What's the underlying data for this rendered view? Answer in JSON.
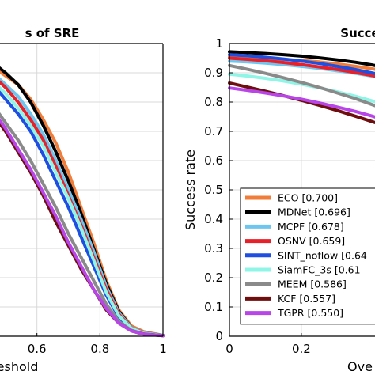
{
  "chart_data": [
    {
      "type": "line",
      "title": "s of SRE",
      "xlabel": "eshold",
      "ylabel": "",
      "xlim": [
        0.42,
        1.0
      ],
      "ylim": [
        0,
        1
      ],
      "xticks": [
        0.6,
        0.8,
        1
      ],
      "xtick_labels": [
        "0.6",
        "0.8",
        "1"
      ],
      "grid": true,
      "series": [
        {
          "color": "#f07d3a",
          "width": 4,
          "x": [
            0.42,
            0.46,
            0.5,
            0.54,
            0.58,
            0.62,
            0.66,
            0.7,
            0.74,
            0.78,
            0.82,
            0.86,
            0.9,
            0.94,
            1.0
          ],
          "y": [
            0.95,
            0.92,
            0.89,
            0.86,
            0.81,
            0.74,
            0.66,
            0.56,
            0.44,
            0.32,
            0.19,
            0.09,
            0.035,
            0.015,
            0.003
          ]
        },
        {
          "color": "#000000",
          "width": 4,
          "x": [
            0.42,
            0.46,
            0.5,
            0.54,
            0.58,
            0.62,
            0.66,
            0.7,
            0.74,
            0.78,
            0.82,
            0.86,
            0.9,
            0.94,
            1.0
          ],
          "y": [
            0.96,
            0.935,
            0.9,
            0.86,
            0.8,
            0.72,
            0.63,
            0.53,
            0.42,
            0.3,
            0.18,
            0.085,
            0.03,
            0.012,
            0.003
          ]
        },
        {
          "color": "#6ec6ee",
          "width": 4,
          "x": [
            0.42,
            0.46,
            0.5,
            0.54,
            0.58,
            0.62,
            0.66,
            0.7,
            0.74,
            0.78,
            0.82,
            0.86,
            0.9,
            0.94,
            1.0
          ],
          "y": [
            0.94,
            0.9,
            0.86,
            0.82,
            0.76,
            0.69,
            0.6,
            0.5,
            0.4,
            0.29,
            0.17,
            0.08,
            0.03,
            0.012,
            0.003
          ]
        },
        {
          "color": "#e8202a",
          "width": 4,
          "x": [
            0.42,
            0.46,
            0.5,
            0.54,
            0.58,
            0.62,
            0.66,
            0.7,
            0.74,
            0.78,
            0.82,
            0.86,
            0.9,
            0.94,
            1.0
          ],
          "y": [
            0.93,
            0.89,
            0.85,
            0.8,
            0.74,
            0.67,
            0.58,
            0.48,
            0.38,
            0.27,
            0.16,
            0.075,
            0.028,
            0.011,
            0.003
          ]
        },
        {
          "color": "#1f4fe0",
          "width": 4,
          "x": [
            0.42,
            0.46,
            0.5,
            0.54,
            0.58,
            0.62,
            0.66,
            0.7,
            0.74,
            0.78,
            0.82,
            0.86,
            0.9,
            0.94,
            1.0
          ],
          "y": [
            0.9,
            0.86,
            0.81,
            0.76,
            0.7,
            0.62,
            0.53,
            0.44,
            0.34,
            0.24,
            0.14,
            0.065,
            0.025,
            0.01,
            0.003
          ]
        },
        {
          "color": "#8ff5e6",
          "width": 4,
          "x": [
            0.42,
            0.46,
            0.5,
            0.54,
            0.58,
            0.62,
            0.66,
            0.7,
            0.74,
            0.78,
            0.82,
            0.86,
            0.9,
            0.94,
            1.0
          ],
          "y": [
            0.91,
            0.87,
            0.83,
            0.78,
            0.72,
            0.65,
            0.56,
            0.47,
            0.37,
            0.26,
            0.15,
            0.07,
            0.027,
            0.01,
            0.003
          ]
        },
        {
          "color": "#8a8a8a",
          "width": 4,
          "x": [
            0.42,
            0.46,
            0.5,
            0.54,
            0.58,
            0.62,
            0.66,
            0.7,
            0.74,
            0.78,
            0.82,
            0.86,
            0.9,
            0.94,
            1.0
          ],
          "y": [
            0.84,
            0.79,
            0.73,
            0.67,
            0.6,
            0.52,
            0.44,
            0.35,
            0.27,
            0.19,
            0.11,
            0.05,
            0.02,
            0.008,
            0.002
          ]
        },
        {
          "color": "#6e0e0e",
          "width": 4,
          "x": [
            0.42,
            0.46,
            0.5,
            0.54,
            0.58,
            0.62,
            0.66,
            0.7,
            0.74,
            0.78,
            0.82,
            0.86,
            0.9,
            0.94,
            1.0
          ],
          "y": [
            0.82,
            0.76,
            0.7,
            0.63,
            0.56,
            0.48,
            0.39,
            0.31,
            0.23,
            0.16,
            0.09,
            0.045,
            0.018,
            0.007,
            0.002
          ]
        },
        {
          "color": "#b845e8",
          "width": 4,
          "x": [
            0.42,
            0.46,
            0.5,
            0.54,
            0.58,
            0.62,
            0.66,
            0.7,
            0.74,
            0.78,
            0.82,
            0.86,
            0.9,
            0.94,
            1.0
          ],
          "y": [
            0.83,
            0.77,
            0.71,
            0.64,
            0.57,
            0.49,
            0.41,
            0.32,
            0.24,
            0.16,
            0.095,
            0.045,
            0.018,
            0.007,
            0.002
          ]
        }
      ]
    },
    {
      "type": "line",
      "title": "Succe",
      "xlabel": "Ove",
      "ylabel": "Success rate",
      "xlim": [
        0,
        0.44
      ],
      "ylim": [
        0,
        1
      ],
      "xticks": [
        0,
        0.2
      ],
      "xtick_labels": [
        "0",
        "0.2"
      ],
      "yticks": [
        0,
        0.1,
        0.2,
        0.3,
        0.4,
        0.5,
        0.6,
        0.7,
        0.8,
        0.9,
        1
      ],
      "ytick_labels": [
        "0",
        "0.1",
        "0.2",
        "0.3",
        "0.4",
        "0.5",
        "0.6",
        "0.7",
        "0.8",
        "0.9",
        "1"
      ],
      "grid": true,
      "legend": {
        "location": "lower-right",
        "entries": [
          "ECO [0.700]",
          "MDNet [0.696]",
          "MCPF [0.678]",
          "OSNV [0.659]",
          "SINT_noflow [0.64",
          "SiamFC_3s [0.61",
          "MEEM [0.586]",
          "KCF [0.557]",
          "TGPR [0.550]"
        ]
      },
      "series": [
        {
          "name": "ECO [0.700]",
          "color": "#f07d3a",
          "width": 4,
          "x": [
            0,
            0.05,
            0.1,
            0.15,
            0.2,
            0.25,
            0.3,
            0.35,
            0.4,
            0.44
          ],
          "y": [
            0.955,
            0.953,
            0.95,
            0.946,
            0.942,
            0.937,
            0.93,
            0.922,
            0.913,
            0.905
          ]
        },
        {
          "name": "MDNet [0.696]",
          "color": "#000000",
          "width": 4,
          "x": [
            0,
            0.05,
            0.1,
            0.15,
            0.2,
            0.25,
            0.3,
            0.35,
            0.4,
            0.44
          ],
          "y": [
            0.972,
            0.969,
            0.966,
            0.962,
            0.957,
            0.951,
            0.944,
            0.936,
            0.926,
            0.916
          ]
        },
        {
          "name": "MCPF [0.678]",
          "color": "#6ec6ee",
          "width": 4,
          "x": [
            0,
            0.05,
            0.1,
            0.15,
            0.2,
            0.25,
            0.3,
            0.35,
            0.4,
            0.44
          ],
          "y": [
            0.94,
            0.937,
            0.933,
            0.928,
            0.922,
            0.915,
            0.907,
            0.898,
            0.888,
            0.878
          ]
        },
        {
          "name": "OSNV [0.659]",
          "color": "#e8202a",
          "width": 4,
          "x": [
            0,
            0.05,
            0.1,
            0.15,
            0.2,
            0.25,
            0.3,
            0.35,
            0.4,
            0.44
          ],
          "y": [
            0.95,
            0.946,
            0.941,
            0.935,
            0.928,
            0.92,
            0.911,
            0.901,
            0.89,
            0.88
          ]
        },
        {
          "name": "SINT_noflow [0.64",
          "color": "#1f4fe0",
          "width": 4,
          "x": [
            0,
            0.05,
            0.1,
            0.15,
            0.2,
            0.25,
            0.3,
            0.35,
            0.4,
            0.44
          ],
          "y": [
            0.962,
            0.958,
            0.953,
            0.947,
            0.94,
            0.932,
            0.922,
            0.911,
            0.899,
            0.888
          ]
        },
        {
          "name": "SiamFC_3s [0.61",
          "color": "#8ff5e6",
          "width": 4,
          "x": [
            0,
            0.05,
            0.1,
            0.15,
            0.2,
            0.25,
            0.3,
            0.35,
            0.4,
            0.44
          ],
          "y": [
            0.895,
            0.889,
            0.881,
            0.872,
            0.861,
            0.849,
            0.835,
            0.82,
            0.803,
            0.788
          ]
        },
        {
          "name": "MEEM [0.586]",
          "color": "#8a8a8a",
          "width": 4,
          "x": [
            0,
            0.05,
            0.1,
            0.15,
            0.2,
            0.25,
            0.3,
            0.35,
            0.4,
            0.44
          ],
          "y": [
            0.925,
            0.912,
            0.898,
            0.883,
            0.867,
            0.85,
            0.831,
            0.812,
            0.79,
            0.772
          ]
        },
        {
          "name": "KCF [0.557]",
          "color": "#6e0e0e",
          "width": 4,
          "x": [
            0,
            0.05,
            0.1,
            0.15,
            0.2,
            0.25,
            0.3,
            0.35,
            0.4,
            0.44
          ],
          "y": [
            0.865,
            0.851,
            0.837,
            0.822,
            0.806,
            0.789,
            0.771,
            0.752,
            0.732,
            0.715
          ]
        },
        {
          "name": "TGPR [0.550]",
          "color": "#b845e8",
          "width": 4,
          "x": [
            0,
            0.05,
            0.1,
            0.15,
            0.2,
            0.25,
            0.3,
            0.35,
            0.4,
            0.44
          ],
          "y": [
            0.848,
            0.84,
            0.831,
            0.821,
            0.81,
            0.797,
            0.783,
            0.768,
            0.751,
            0.735
          ]
        }
      ]
    }
  ]
}
